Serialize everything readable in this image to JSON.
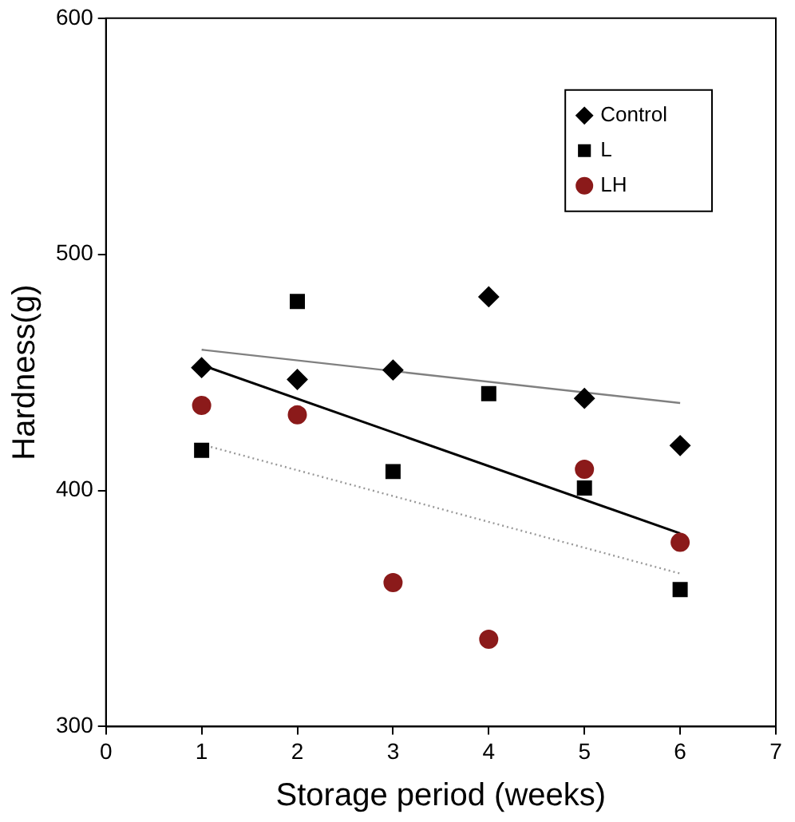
{
  "chart_data": {
    "type": "scatter",
    "xlabel": "Storage period (weeks)",
    "ylabel": "Hardness(g)",
    "xlim": [
      0,
      7
    ],
    "xticks": [
      0,
      1,
      2,
      3,
      4,
      5,
      6,
      7
    ],
    "ylim": [
      300,
      600
    ],
    "yticks": [
      300,
      400,
      500,
      600
    ],
    "grid": false,
    "legend": "top right",
    "series": [
      {
        "name": "Control",
        "color": "#000000",
        "marker": "diamond",
        "x": [
          1,
          2,
          3,
          4,
          5,
          6
        ],
        "values": [
          452,
          447,
          451,
          482,
          439,
          419
        ]
      },
      {
        "name": "L",
        "color": "#000000",
        "marker": "square",
        "x": [
          1,
          2,
          3,
          4,
          5,
          6
        ],
        "values": [
          417,
          480,
          408,
          441,
          401,
          358
        ]
      },
      {
        "name": "LH",
        "color": "#8b1a1a",
        "marker": "circle",
        "x": [
          1,
          2,
          3,
          4,
          5,
          6
        ],
        "values": [
          436,
          432,
          361,
          337,
          409,
          378
        ]
      },
      {
        "type": "line",
        "color": "#808080",
        "line_style": "solid",
        "marker": "none",
        "x": [
          1,
          6
        ],
        "values": [
          459.6,
          437
        ]
      },
      {
        "type": "line",
        "color": "#000000",
        "line_style": "solid",
        "marker": "none",
        "x": [
          1,
          6
        ],
        "values": [
          453.1,
          381.8
        ]
      },
      {
        "type": "line",
        "color": "#999999",
        "line_style": "dotted",
        "marker": "none",
        "x": [
          1,
          6
        ],
        "values": [
          419.5,
          364.8
        ]
      }
    ]
  }
}
